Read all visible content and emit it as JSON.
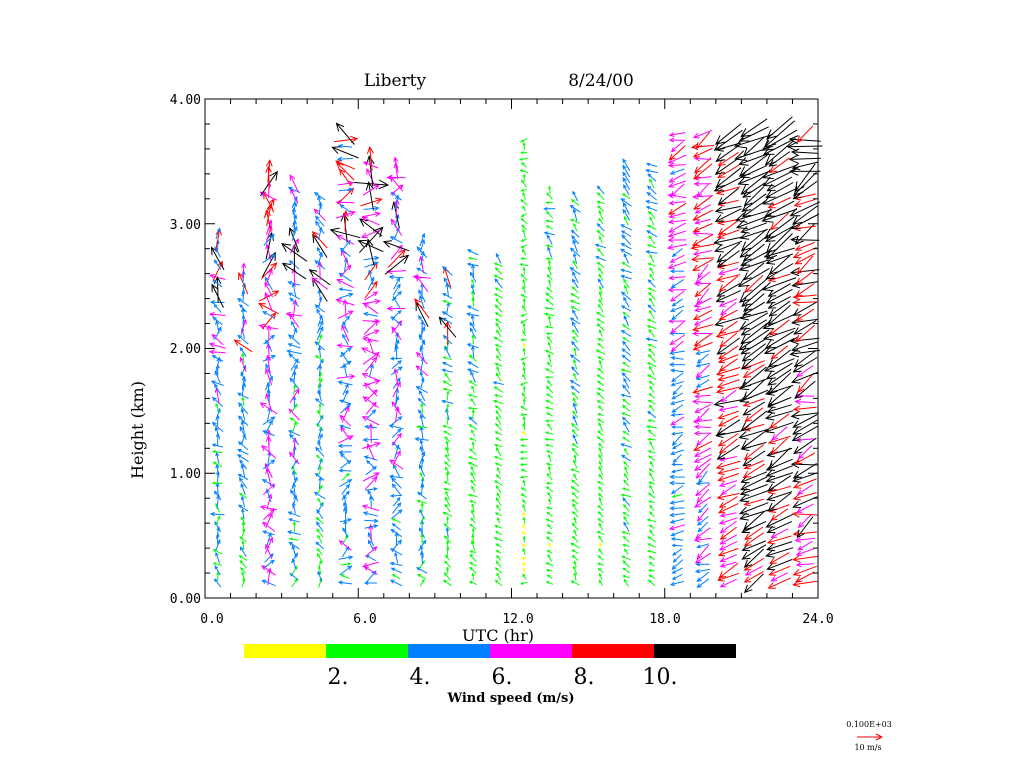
{
  "chart_data": {
    "type": "wind-profile",
    "title_station": "Liberty",
    "title_date": "8/24/00",
    "xlabel": "UTC (hr)",
    "ylabel": "Height (km)",
    "xlim": [
      0,
      24
    ],
    "ylim": [
      0,
      4
    ],
    "x_ticks": [
      "0.0",
      "6.0",
      "12.0",
      "18.0",
      "24.0"
    ],
    "x_tick_values": [
      0,
      6,
      12,
      18,
      24
    ],
    "y_ticks": [
      "0.00",
      "1.00",
      "2.00",
      "3.00",
      "4.00"
    ],
    "y_tick_values": [
      0,
      1,
      2,
      3,
      4
    ],
    "colorbar": {
      "label": "Wind speed (m/s)",
      "bins": [
        {
          "min": 0,
          "max": 2,
          "color": "#ffff00"
        },
        {
          "min": 2,
          "max": 4,
          "color": "#00ff00"
        },
        {
          "min": 4,
          "max": 6,
          "color": "#0080ff"
        },
        {
          "min": 6,
          "max": 8,
          "color": "#ff00ff"
        },
        {
          "min": 8,
          "max": 10,
          "color": "#ff0000"
        },
        {
          "min": 10,
          "max": 12,
          "color": "#000000"
        }
      ],
      "tick_labels": [
        "2.",
        "4.",
        "6.",
        "8.",
        "10."
      ]
    },
    "reference_vector": {
      "scale_text": "0.100E+03",
      "label": "10 m/s",
      "color": "#ff0000"
    },
    "profiles": [
      {
        "time": 0.5,
        "top": 2.95,
        "speed": 5.0,
        "dir": 120,
        "dir_step": 4
      },
      {
        "time": 1.5,
        "top": 2.65,
        "speed": 4.6,
        "dir": 110,
        "dir_step": 3
      },
      {
        "time": 2.5,
        "top": 3.45,
        "speed": 6.6,
        "dir": 100,
        "dir_step": 5
      },
      {
        "time": 3.5,
        "top": 3.35,
        "speed": 5.2,
        "dir": 115,
        "dir_step": 4
      },
      {
        "time": 4.5,
        "top": 3.25,
        "speed": 4.4,
        "dir": 105,
        "dir_step": 3
      },
      {
        "time": 5.5,
        "top": 3.75,
        "speed": 5.8,
        "dir": 95,
        "dir_step": 6
      },
      {
        "time": 6.5,
        "top": 3.55,
        "speed": 6.4,
        "dir": 100,
        "dir_step": 7
      },
      {
        "time": 7.5,
        "top": 3.5,
        "speed": 5.6,
        "dir": 110,
        "dir_step": 5
      },
      {
        "time": 8.5,
        "top": 2.9,
        "speed": 4.8,
        "dir": 115,
        "dir_step": 4
      },
      {
        "time": 9.5,
        "top": 2.65,
        "speed": 3.8,
        "dir": 125,
        "dir_step": 3
      },
      {
        "time": 10.5,
        "top": 2.8,
        "speed": 3.6,
        "dir": 130,
        "dir_step": 3
      },
      {
        "time": 11.5,
        "top": 2.75,
        "speed": 3.2,
        "dir": 140,
        "dir_step": 2
      },
      {
        "time": 12.5,
        "top": 3.7,
        "speed": 2.6,
        "dir": 150,
        "dir_step": 4
      },
      {
        "time": 13.5,
        "top": 3.3,
        "speed": 3.0,
        "dir": 140,
        "dir_step": 3
      },
      {
        "time": 14.5,
        "top": 3.25,
        "speed": 3.6,
        "dir": 130,
        "dir_step": 2
      },
      {
        "time": 15.5,
        "top": 3.3,
        "speed": 3.0,
        "dir": 135,
        "dir_step": 2
      },
      {
        "time": 16.5,
        "top": 3.5,
        "speed": 3.8,
        "dir": 140,
        "dir_step": 2
      },
      {
        "time": 17.5,
        "top": 3.5,
        "speed": 3.4,
        "dir": 145,
        "dir_step": 2
      },
      {
        "time": 18.5,
        "top": 3.75,
        "speed": 5.8,
        "dir": 200,
        "dir_step": 2
      },
      {
        "time": 19.5,
        "top": 3.75,
        "speed": 7.0,
        "dir": 205,
        "dir_step": 2
      },
      {
        "time": 20.5,
        "top": 3.75,
        "speed": 9.4,
        "dir": 205,
        "dir_step": 1
      },
      {
        "time": 21.5,
        "top": 3.8,
        "speed": 11.5,
        "dir": 210,
        "dir_step": 1
      },
      {
        "time": 22.5,
        "top": 3.8,
        "speed": 11.0,
        "dir": 210,
        "dir_step": 1
      },
      {
        "time": 23.5,
        "top": 3.75,
        "speed": 9.8,
        "dir": 205,
        "dir_step": 2
      }
    ]
  }
}
